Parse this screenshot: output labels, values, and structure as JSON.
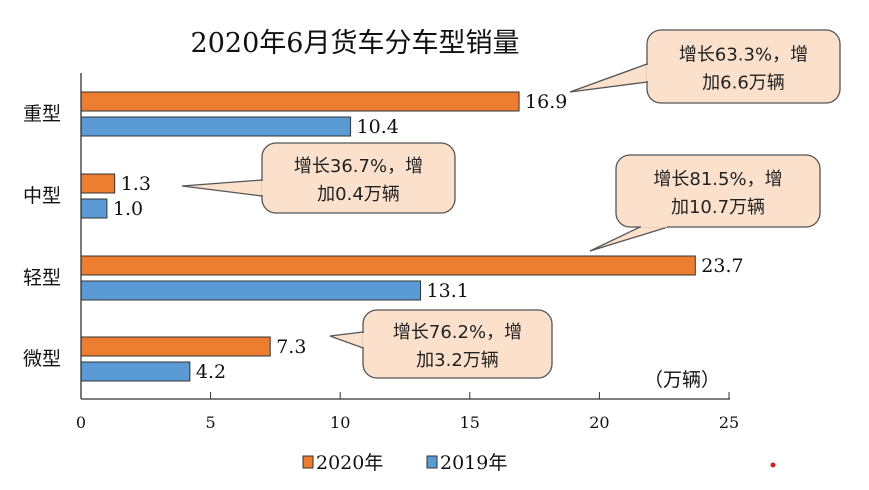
{
  "chart_data": {
    "type": "bar",
    "orientation": "horizontal",
    "title": "2020年6月货车分车型销量",
    "unit_label": "（万辆）",
    "categories": [
      "重型",
      "中型",
      "轻型",
      "微型"
    ],
    "series": [
      {
        "name": "2020年",
        "values": [
          16.9,
          1.3,
          23.7,
          7.3
        ],
        "color": "#ed7d31"
      },
      {
        "name": "2019年",
        "values": [
          10.4,
          1.0,
          13.1,
          4.2
        ],
        "color": "#5b9bd5"
      }
    ],
    "xlim": [
      0,
      25
    ],
    "xticks": [
      0,
      5,
      10,
      15,
      20,
      25
    ],
    "grid": false,
    "legend": "bottom",
    "annotations": [
      {
        "line1": "增长63.3%，增",
        "line2": "加6.6万辆"
      },
      {
        "line1": "增长36.7%，增",
        "line2": "加0.4万辆"
      },
      {
        "line1": "增长81.5%，增",
        "line2": "加10.7万辆"
      },
      {
        "line1": "增长76.2%，增",
        "line2": "加3.2万辆"
      }
    ],
    "callout_color": "#fbe1cc"
  }
}
